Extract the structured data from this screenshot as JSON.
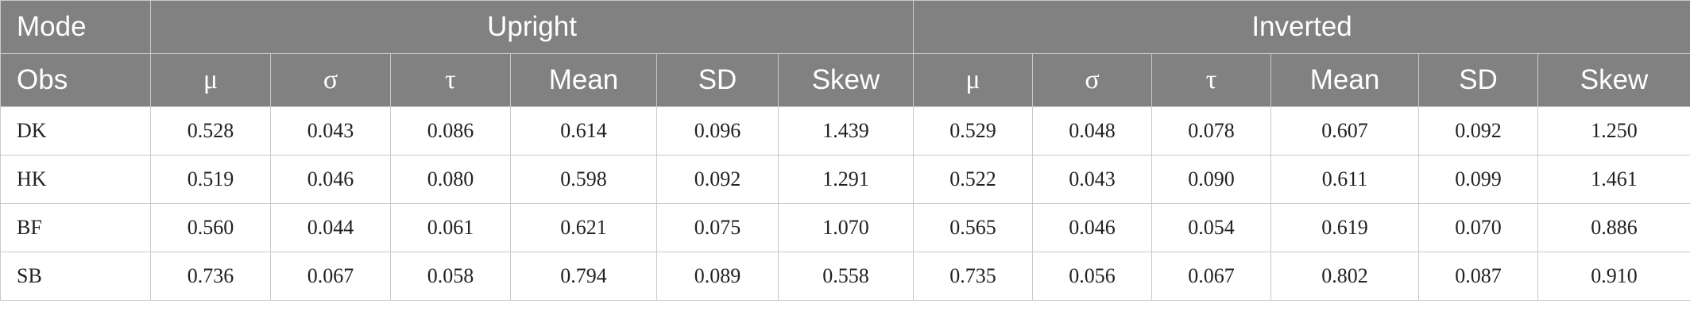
{
  "header": {
    "mode_label": "Mode",
    "obs_label": "Obs",
    "groups": [
      "Upright",
      "Inverted"
    ],
    "columns": [
      "μ",
      "σ",
      "τ",
      "Mean",
      "SD",
      "Skew"
    ]
  },
  "rows": [
    {
      "obs": "DK",
      "upright": [
        "0.528",
        "0.043",
        "0.086",
        "0.614",
        "0.096",
        "1.439"
      ],
      "inverted": [
        "0.529",
        "0.048",
        "0.078",
        "0.607",
        "0.092",
        "1.250"
      ]
    },
    {
      "obs": "HK",
      "upright": [
        "0.519",
        "0.046",
        "0.080",
        "0.598",
        "0.092",
        "1.291"
      ],
      "inverted": [
        "0.522",
        "0.043",
        "0.090",
        "0.611",
        "0.099",
        "1.461"
      ]
    },
    {
      "obs": "BF",
      "upright": [
        "0.560",
        "0.044",
        "0.061",
        "0.621",
        "0.075",
        "1.070"
      ],
      "inverted": [
        "0.565",
        "0.046",
        "0.054",
        "0.619",
        "0.070",
        "0.886"
      ]
    },
    {
      "obs": "SB",
      "upright": [
        "0.736",
        "0.067",
        "0.058",
        "0.794",
        "0.089",
        "0.558"
      ],
      "inverted": [
        "0.735",
        "0.056",
        "0.067",
        "0.802",
        "0.087",
        "0.910"
      ]
    }
  ]
}
